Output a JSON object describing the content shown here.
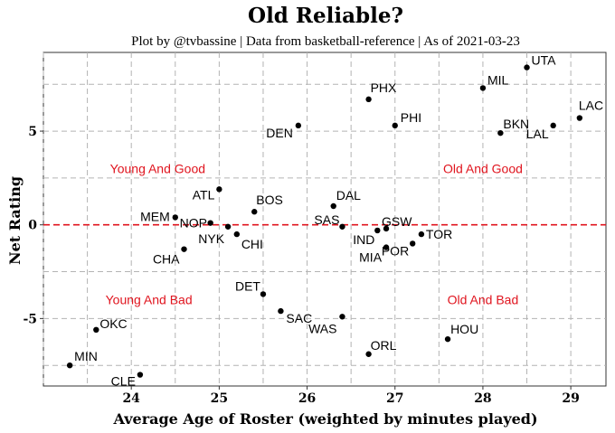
{
  "chart_data": {
    "type": "scatter",
    "title": "Old Reliable?",
    "subtitle": "Plot by @tvbassine | Data from basketball-reference | As of 2021-03-23",
    "xlabel": "Average Age of Roster (weighted by minutes played)",
    "ylabel": "Net Rating",
    "xlim": [
      23.0,
      29.4
    ],
    "ylim": [
      -8.6,
      9.2
    ],
    "x_ticks": [
      24,
      25,
      26,
      27,
      28,
      29
    ],
    "y_ticks": [
      -5,
      0,
      5
    ],
    "grid": true,
    "reference_line": {
      "y": 0,
      "color": "#e0141e",
      "style": "dashed"
    },
    "quadrant_labels": [
      {
        "text": "Young And Good",
        "x": 24.3,
        "y": 3.0
      },
      {
        "text": "Old And Good",
        "x": 28.0,
        "y": 3.0
      },
      {
        "text": "Young And Bad",
        "x": 24.2,
        "y": -4.0
      },
      {
        "text": "Old And Bad",
        "x": 28.0,
        "y": -4.0
      }
    ],
    "points": [
      {
        "label": "UTA",
        "x": 28.5,
        "y": 8.4
      },
      {
        "label": "MIL",
        "x": 28.0,
        "y": 7.3
      },
      {
        "label": "PHX",
        "x": 26.7,
        "y": 6.7
      },
      {
        "label": "LAC",
        "x": 29.1,
        "y": 5.7
      },
      {
        "label": "PHI",
        "x": 27.0,
        "y": 5.3
      },
      {
        "label": "LAL",
        "x": 28.8,
        "y": 5.3
      },
      {
        "label": "BKN",
        "x": 28.2,
        "y": 4.9
      },
      {
        "label": "DEN",
        "x": 25.9,
        "y": 5.3
      },
      {
        "label": "ATL",
        "x": 25.0,
        "y": 1.9
      },
      {
        "label": "BOS",
        "x": 25.4,
        "y": 0.7
      },
      {
        "label": "DAL",
        "x": 26.3,
        "y": 1.0
      },
      {
        "label": "MEM",
        "x": 24.5,
        "y": 0.4
      },
      {
        "label": "NOP",
        "x": 24.9,
        "y": 0.1
      },
      {
        "label": "NYK",
        "x": 25.1,
        "y": -0.1
      },
      {
        "label": "SAS",
        "x": 26.4,
        "y": -0.1
      },
      {
        "label": "GSW",
        "x": 26.9,
        "y": -0.2
      },
      {
        "label": "IND",
        "x": 26.8,
        "y": -0.3
      },
      {
        "label": "CHI",
        "x": 25.2,
        "y": -0.5
      },
      {
        "label": "TOR",
        "x": 27.3,
        "y": -0.5
      },
      {
        "label": "POR",
        "x": 27.2,
        "y": -1.0
      },
      {
        "label": "MIA",
        "x": 26.9,
        "y": -1.2
      },
      {
        "label": "CHA",
        "x": 24.6,
        "y": -1.3
      },
      {
        "label": "DET",
        "x": 25.5,
        "y": -3.7
      },
      {
        "label": "SAC",
        "x": 25.7,
        "y": -4.6
      },
      {
        "label": "WAS",
        "x": 26.4,
        "y": -4.9
      },
      {
        "label": "OKC",
        "x": 23.6,
        "y": -5.6
      },
      {
        "label": "HOU",
        "x": 27.6,
        "y": -6.1
      },
      {
        "label": "ORL",
        "x": 26.7,
        "y": -6.9
      },
      {
        "label": "MIN",
        "x": 23.3,
        "y": -7.5
      },
      {
        "label": "CLE",
        "x": 24.1,
        "y": -8.0
      }
    ]
  }
}
